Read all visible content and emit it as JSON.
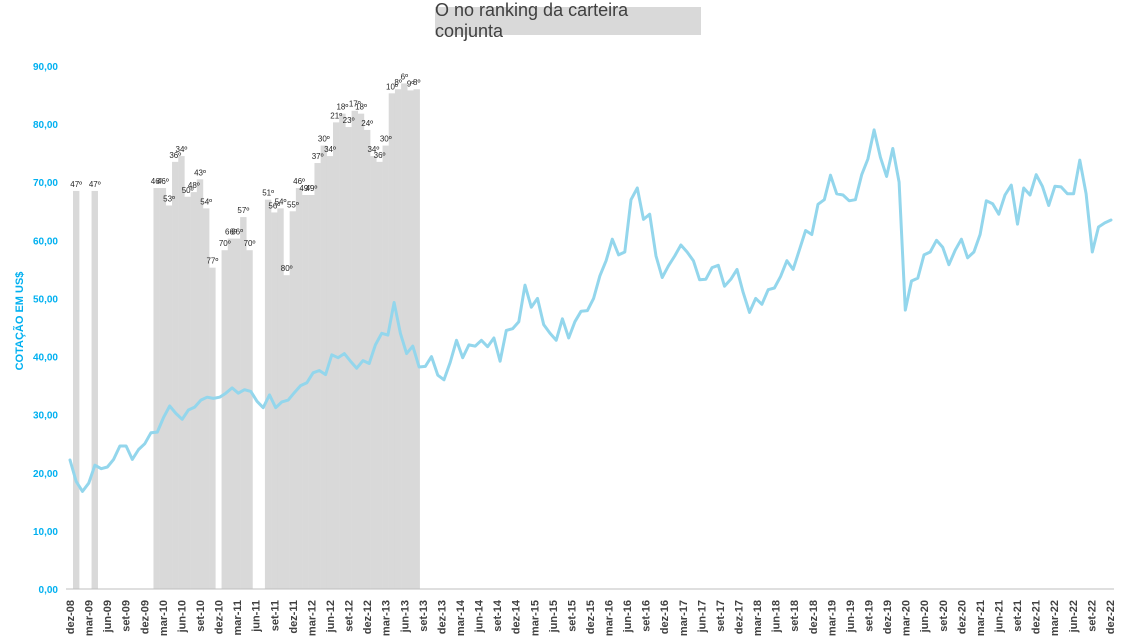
{
  "chart_data": {
    "type": "bar+line",
    "title": "O no ranking da carteira conjunta",
    "ylabel": "COTAÇÃO EM US$",
    "ylim": [
      0,
      90
    ],
    "yticks": [
      "0,00",
      "10,00",
      "20,00",
      "30,00",
      "40,00",
      "50,00",
      "60,00",
      "70,00",
      "80,00",
      "90,00"
    ],
    "xticks": [
      "dez-08",
      "mar-09",
      "jun-09",
      "set-09",
      "dez-09",
      "mar-10",
      "jun-10",
      "set-10",
      "dez-10",
      "mar-11",
      "jun-11",
      "set-11",
      "dez-11",
      "mar-12",
      "jun-12",
      "set-12",
      "dez-12",
      "mar-13",
      "jun-13",
      "set-13",
      "dez-13",
      "mar-14",
      "jun-14",
      "set-14",
      "dez-14",
      "mar-15",
      "jun-15",
      "set-15",
      "dez-15",
      "mar-16",
      "jun-16",
      "set-16",
      "dez-16",
      "mar-17",
      "jun-17",
      "set-17",
      "dez-17",
      "mar-18",
      "jun-18",
      "set-18",
      "dez-18",
      "mar-19",
      "jun-19",
      "set-19",
      "dez-19",
      "mar-20",
      "jun-20",
      "set-20",
      "dez-20",
      "mar-21",
      "jun-21",
      "set-21",
      "dez-21",
      "mar-22",
      "jun-22",
      "set-22",
      "dez-22"
    ],
    "grid": false,
    "bars": [
      {
        "month": 3,
        "value": 68.5,
        "label": "47º"
      },
      {
        "month": 12,
        "value": 68.5,
        "label": "47º"
      },
      {
        "month": 42,
        "value": 69.0,
        "label": "46º"
      },
      {
        "month": 45,
        "value": 69.0,
        "label": "46º"
      },
      {
        "month": 48,
        "value": 66.0,
        "label": "53º"
      },
      {
        "month": 51,
        "value": 73.5,
        "label": "36º"
      },
      {
        "month": 54,
        "value": 74.5,
        "label": "34º"
      },
      {
        "month": 57,
        "value": 67.5,
        "label": "50º"
      },
      {
        "month": 60,
        "value": 68.3,
        "label": "48º"
      },
      {
        "month": 63,
        "value": 70.5,
        "label": "43º"
      },
      {
        "month": 66,
        "value": 65.5,
        "label": "54º"
      },
      {
        "month": 69,
        "value": 55.3,
        "label": "77º"
      },
      {
        "month": 75,
        "value": 58.3,
        "label": "70º"
      },
      {
        "month": 78,
        "value": 60.3,
        "label": "66º"
      },
      {
        "month": 81,
        "value": 60.3,
        "label": "66º"
      },
      {
        "month": 84,
        "value": 64.0,
        "label": "57º"
      },
      {
        "month": 87,
        "value": 58.3,
        "label": "70º"
      },
      {
        "month": 96,
        "value": 67.0,
        "label": "51º"
      },
      {
        "month": 99,
        "value": 64.8,
        "label": "56º"
      },
      {
        "month": 102,
        "value": 65.5,
        "label": "54º"
      },
      {
        "month": 105,
        "value": 54.0,
        "label": "80º"
      },
      {
        "month": 108,
        "value": 65.0,
        "label": "55º"
      },
      {
        "month": 111,
        "value": 69.0,
        "label": "46º"
      },
      {
        "month": 114,
        "value": 67.8,
        "label": "49º"
      },
      {
        "month": 117,
        "value": 67.8,
        "label": "49º"
      },
      {
        "month": 120,
        "value": 73.3,
        "label": "37º"
      },
      {
        "month": 123,
        "value": 76.3,
        "label": "30º"
      },
      {
        "month": 126,
        "value": 74.5,
        "label": "34º"
      },
      {
        "month": 129,
        "value": 80.3,
        "label": "21º"
      },
      {
        "month": 132,
        "value": 81.8,
        "label": "18º"
      },
      {
        "month": 135,
        "value": 79.5,
        "label": "23º"
      },
      {
        "month": 138,
        "value": 82.3,
        "label": "17º"
      },
      {
        "month": 141,
        "value": 81.8,
        "label": "18º"
      },
      {
        "month": 144,
        "value": 79.0,
        "label": "24º"
      },
      {
        "month": 147,
        "value": 74.5,
        "label": "34º"
      },
      {
        "month": 150,
        "value": 73.5,
        "label": "36º"
      },
      {
        "month": 153,
        "value": 76.3,
        "label": "30º"
      },
      {
        "month": 156,
        "value": 85.3,
        "label": "10º"
      },
      {
        "month": 159,
        "value": 86.0,
        "label": "8º"
      },
      {
        "month": 162,
        "value": 87.0,
        "label": "6º"
      },
      {
        "month": 165,
        "value": 85.8,
        "label": "9º"
      },
      {
        "month": 168,
        "value": 86.0,
        "label": "8º"
      }
    ],
    "line": [
      22.2,
      18.5,
      16.8,
      18.2,
      21.3,
      20.7,
      21.0,
      22.3,
      24.6,
      24.6,
      22.3,
      24.0,
      25.0,
      26.9,
      27.0,
      29.5,
      31.5,
      30.2,
      29.2,
      30.8,
      31.3,
      32.5,
      33.0,
      32.8,
      33.0,
      33.7,
      34.6,
      33.7,
      34.3,
      34.0,
      32.3,
      31.2,
      33.4,
      31.2,
      32.2,
      32.5,
      33.8,
      35.0,
      35.5,
      37.2,
      37.6,
      36.9,
      40.3,
      39.8,
      40.5,
      39.2,
      38.0,
      39.3,
      38.8,
      42.0,
      44.0,
      43.7,
      49.3,
      44.0,
      40.5,
      41.8,
      38.2,
      38.3,
      40.0,
      36.8,
      36.0,
      39.0,
      42.8,
      39.8,
      42.0,
      41.8,
      42.8,
      41.7,
      43.2,
      39.2,
      44.5,
      44.8,
      46.0,
      52.3,
      48.5,
      50.0,
      45.5,
      44.0,
      42.8,
      46.5,
      43.2,
      46.0,
      47.8,
      47.9,
      50.0,
      53.9,
      56.5,
      60.2,
      57.5,
      58.0,
      67.0,
      69.0,
      63.6,
      64.5,
      57.3,
      53.6,
      55.6,
      57.3,
      59.2,
      58.0,
      56.5,
      53.2,
      53.3,
      55.3,
      55.7,
      52.1,
      53.3,
      55.0,
      51.0,
      47.6,
      50.0,
      49.0,
      51.5,
      51.8,
      53.8,
      56.5,
      55.0,
      58.3,
      61.7,
      61.0,
      66.2,
      67.0,
      71.2,
      68.0,
      67.8,
      66.8,
      67.0,
      71.3,
      74.0,
      79.0,
      74.3,
      71.0,
      75.8,
      70.0,
      48.0,
      53.0,
      53.5,
      57.5,
      58.0,
      60.0,
      58.8,
      55.8,
      58.3,
      60.2,
      57.0,
      58.0,
      61.0,
      66.8,
      66.3,
      64.5,
      67.8,
      69.5,
      62.8,
      69.0,
      67.8,
      71.3,
      69.3,
      66.0,
      69.3,
      69.2,
      68.0,
      68.0,
      73.8,
      68.0,
      58.0,
      62.3,
      63.0,
      63.5
    ],
    "colors": {
      "bar": "#d9d9d9",
      "line": "#93d6ec",
      "yaxis": "#00b0f0",
      "title_bg": "#d9d9d9"
    }
  }
}
